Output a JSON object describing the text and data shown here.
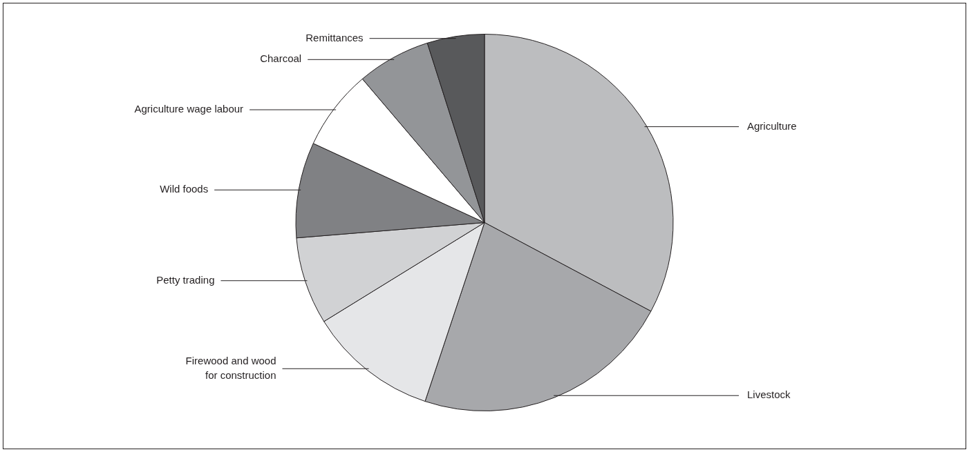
{
  "chart_data": {
    "type": "pie",
    "categories": [
      "Agriculture",
      "Livestock",
      "Firewood and wood for construction",
      "Petty trading",
      "Wild foods",
      "Agriculture wage labour",
      "Charcoal",
      "Remittances"
    ],
    "values": [
      32.8,
      22.3,
      11.1,
      7.5,
      8.2,
      6.9,
      6.3,
      4.9
    ],
    "colors": [
      "#bcbdbf",
      "#a7a8ab",
      "#e5e6e8",
      "#d1d2d4",
      "#808184",
      "#ffffff",
      "#939598",
      "#58595b"
    ],
    "legend": false
  }
}
